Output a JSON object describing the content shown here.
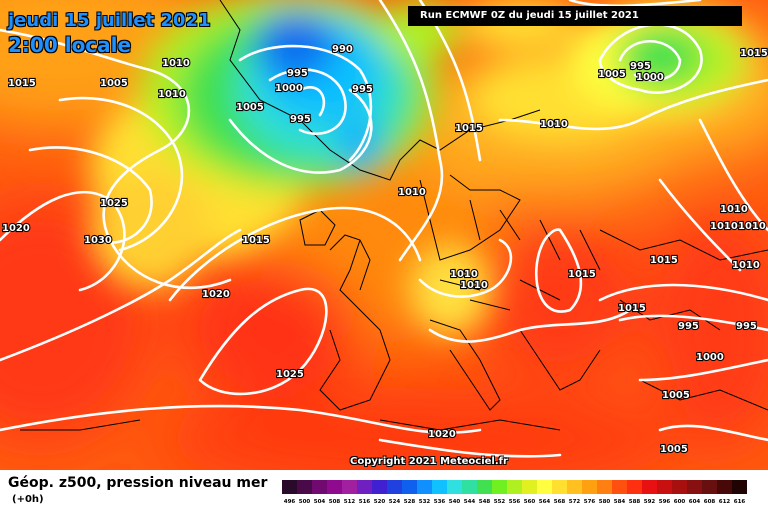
{
  "header": {
    "date": "jeudi 15 juillet 2021",
    "time": "2:00 locale",
    "run": "Run ECMWF 0Z du jeudi 15 juillet 2021"
  },
  "copyright": "Copyright 2021 Meteociel.fr",
  "legend": {
    "title": "Géop. z500, pression niveau mer",
    "subtitle": "(+0h)",
    "scale_labels": [
      "496",
      "500",
      "504",
      "508",
      "512",
      "516",
      "520",
      "524",
      "528",
      "532",
      "536",
      "540",
      "544",
      "548",
      "552",
      "556",
      "560",
      "564",
      "568",
      "572",
      "576",
      "580",
      "584",
      "588",
      "592",
      "596",
      "600",
      "604",
      "608",
      "612",
      "616"
    ],
    "scale_colors": [
      "#2a0a2a",
      "#4a0a4a",
      "#700a70",
      "#900a90",
      "#a020a0",
      "#7020c0",
      "#4020d0",
      "#2040e0",
      "#1060f0",
      "#1090ff",
      "#10c0ff",
      "#30e0e0",
      "#30e0a0",
      "#40e050",
      "#70f020",
      "#b0f020",
      "#e0f020",
      "#ffff40",
      "#ffe030",
      "#ffc020",
      "#ffa010",
      "#ff8010",
      "#ff5010",
      "#ff3010",
      "#e81010",
      "#c81010",
      "#a81010",
      "#881010",
      "#681010",
      "#480808",
      "#200404"
    ]
  },
  "isobar_labels": [
    "1015",
    "1010",
    "1005",
    "1010",
    "990",
    "995",
    "1000",
    "995",
    "995",
    "1005",
    "1005",
    "1000",
    "995",
    "1015",
    "1015",
    "1010",
    "1010",
    "1025",
    "1030",
    "1020",
    "1015",
    "1020",
    "1010",
    "1010",
    "1015",
    "1015",
    "1015",
    "995",
    "995",
    "1025",
    "1000",
    "1005",
    "1020",
    "1005",
    "1010",
    "1010",
    "1010",
    "1010"
  ]
}
